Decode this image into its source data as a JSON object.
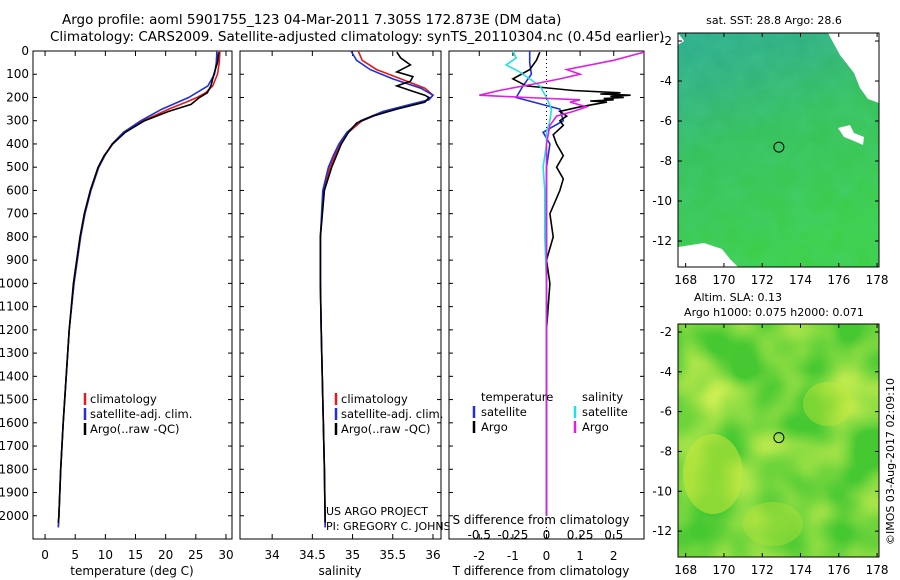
{
  "header": {
    "title_line1": "Argo profile: aoml 5901755_123 04-Mar-2011 7.305S 172.873E (DM data)",
    "title_line2": "Climatology: CARS2009. Satellite-adjusted climatology: synTS_20110304.nc (0.45d earlier)"
  },
  "colors": {
    "climatology": "#e41a1c",
    "satellite": "#1f30d6",
    "argo": "#000000",
    "sal_satellite": "#22e0e8",
    "sal_argo": "#e020e0",
    "sst_ocean": "#2db85a",
    "sla_ocean": "#4ccc2a",
    "land": "#ffffff"
  },
  "chart_data": [
    {
      "id": "temperature",
      "type": "line",
      "xlabel": "temperature (deg C)",
      "xlim": [
        -2,
        31
      ],
      "ylim": [
        2100,
        0
      ],
      "xticks": [
        0,
        5,
        10,
        15,
        20,
        25,
        30
      ],
      "yticks": [
        0,
        100,
        200,
        300,
        400,
        500,
        600,
        700,
        800,
        900,
        1000,
        1100,
        1200,
        1300,
        1400,
        1500,
        1600,
        1700,
        1800,
        1900,
        2000
      ],
      "legend": [
        "climatology",
        "satellite-adj. clim.",
        "Argo(..raw -QC)"
      ],
      "series": [
        {
          "name": "climatology",
          "color_key": "climatology",
          "depth": [
            0,
            50,
            100,
            150,
            180,
            200,
            220,
            250,
            300,
            350,
            400,
            450,
            500,
            600,
            700,
            800,
            1000,
            1200,
            1400,
            1600,
            1800,
            2000,
            2050
          ],
          "values": [
            29.0,
            28.9,
            28.6,
            27.8,
            26.6,
            25.2,
            23.4,
            20.5,
            16.3,
            13.2,
            11.2,
            9.9,
            8.9,
            7.6,
            6.6,
            5.9,
            4.8,
            4.0,
            3.5,
            3.0,
            2.6,
            2.3,
            2.2
          ]
        },
        {
          "name": "satellite-adj. clim.",
          "color_key": "satellite",
          "depth": [
            0,
            50,
            100,
            150,
            200,
            250,
            300,
            350,
            400,
            450,
            500,
            600,
            700,
            800,
            1000,
            1200,
            1400,
            1600,
            1800,
            2000,
            2050
          ],
          "values": [
            28.5,
            28.4,
            28.1,
            27.0,
            23.8,
            19.4,
            15.9,
            13.0,
            11.1,
            9.9,
            8.9,
            7.6,
            6.6,
            5.9,
            4.8,
            4.0,
            3.5,
            3.0,
            2.6,
            2.3,
            2.2
          ]
        },
        {
          "name": "Argo(..raw -QC)",
          "color_key": "argo",
          "depth": [
            5,
            50,
            100,
            150,
            180,
            200,
            230,
            260,
            300,
            350,
            400,
            450,
            500,
            600,
            700,
            800,
            1000,
            1200,
            1400,
            1600,
            1800,
            2000,
            2030
          ],
          "values": [
            28.8,
            28.6,
            28.0,
            27.5,
            26.9,
            25.6,
            24.2,
            20.5,
            16.5,
            13.3,
            11.2,
            9.8,
            8.8,
            7.5,
            6.5,
            5.8,
            4.7,
            4.0,
            3.5,
            3.0,
            2.6,
            2.3,
            2.2
          ]
        }
      ]
    },
    {
      "id": "salinity",
      "type": "line",
      "xlabel": "salinity",
      "xlim": [
        33.6,
        36.1
      ],
      "ylim": [
        2100,
        0
      ],
      "xticks": [
        34,
        34.5,
        35,
        35.5,
        36
      ],
      "xticklabels": [
        "34",
        "34.5",
        "35",
        "35.5",
        "36"
      ],
      "legend": [
        "climatology",
        "satellite-adj. clim.",
        "Argo(..raw -QC)"
      ],
      "series": [
        {
          "name": "climatology",
          "color_key": "climatology",
          "depth": [
            0,
            40,
            80,
            120,
            160,
            190,
            210,
            230,
            260,
            300,
            350,
            400,
            450,
            500,
            600,
            800,
            1000,
            1200,
            1500,
            1800,
            2050
          ],
          "values": [
            35.07,
            35.12,
            35.3,
            35.6,
            35.9,
            36.0,
            35.95,
            35.75,
            35.4,
            35.12,
            34.95,
            34.85,
            34.78,
            34.72,
            34.64,
            34.6,
            34.6,
            34.61,
            34.63,
            34.65,
            34.66
          ]
        },
        {
          "name": "satellite-adj. clim.",
          "color_key": "satellite",
          "depth": [
            0,
            40,
            80,
            120,
            160,
            190,
            210,
            230,
            260,
            300,
            350,
            400,
            450,
            500,
            600,
            800,
            1000,
            1200,
            1500,
            1800,
            2050
          ],
          "values": [
            34.98,
            35.05,
            35.22,
            35.5,
            35.85,
            36.0,
            35.95,
            35.72,
            35.38,
            35.1,
            34.93,
            34.83,
            34.76,
            34.7,
            34.63,
            34.6,
            34.6,
            34.61,
            34.63,
            34.65,
            34.66
          ]
        },
        {
          "name": "Argo(..raw -QC)",
          "color_key": "argo",
          "depth": [
            5,
            30,
            60,
            90,
            110,
            130,
            150,
            170,
            190,
            200,
            220,
            250,
            280,
            310,
            350,
            400,
            450,
            500,
            600,
            800,
            1000,
            1200,
            1500,
            1800,
            2030
          ],
          "values": [
            35.55,
            35.6,
            35.72,
            35.55,
            35.75,
            35.72,
            35.55,
            35.72,
            35.9,
            35.95,
            35.9,
            35.55,
            35.25,
            35.05,
            34.95,
            34.86,
            34.8,
            34.74,
            34.65,
            34.6,
            34.6,
            34.61,
            34.63,
            34.65,
            34.66
          ]
        }
      ]
    },
    {
      "id": "difference",
      "type": "line",
      "xlabel": "T difference from climatology",
      "xlabel_top": "S difference from climatology",
      "xlim": [
        -2.9,
        2.9
      ],
      "ylim": [
        2100,
        0
      ],
      "xticks": [
        -2,
        -1,
        0,
        1,
        2
      ],
      "s_ticklabels": [
        "-0.5",
        "-0.25",
        "0",
        "0.25",
        "0.5"
      ],
      "legend_left_title": "temperature",
      "legend_right_title": "salinity",
      "legend_labels": [
        "satellite",
        "Argo"
      ],
      "zero_line": true,
      "series": [
        {
          "name": "temperature satellite",
          "color_key": "satellite",
          "depth": [
            0,
            50,
            100,
            150,
            200,
            250,
            300,
            350,
            400,
            500,
            600,
            800,
            1000,
            1200,
            1500,
            1800,
            2000
          ],
          "values": [
            -0.5,
            -0.5,
            -0.45,
            -0.7,
            -0.9,
            0.4,
            0.5,
            -0.1,
            0.1,
            0.0,
            0.0,
            0.0,
            0.0,
            0.0,
            0.0,
            0.0,
            0.0
          ]
        },
        {
          "name": "temperature Argo",
          "color_key": "argo",
          "depth": [
            5,
            40,
            80,
            120,
            150,
            170,
            180,
            185,
            190,
            195,
            200,
            205,
            210,
            215,
            220,
            230,
            240,
            260,
            280,
            300,
            320,
            360,
            400,
            450,
            500,
            550,
            600,
            700,
            800,
            900,
            1000,
            1200,
            1500,
            1800,
            2000
          ],
          "values": [
            -0.2,
            -0.3,
            -0.5,
            -1.0,
            -0.6,
            0.8,
            2.2,
            1.6,
            2.5,
            1.9,
            2.3,
            1.7,
            2.0,
            1.3,
            1.8,
            1.4,
            1.0,
            0.4,
            0.6,
            0.4,
            0.5,
            0.2,
            0.3,
            0.5,
            0.3,
            0.5,
            0.4,
            0.1,
            0.2,
            0.0,
            0.1,
            0.0,
            0.0,
            0.0,
            0.0
          ]
        },
        {
          "name": "salinity satellite",
          "color_key": "sal_satellite",
          "depth": [
            0,
            30,
            60,
            90,
            120,
            150,
            200,
            250,
            300,
            350,
            400,
            500,
            600,
            800,
            1000,
            1200,
            1500,
            1800,
            2000
          ],
          "values": [
            -1.0,
            -0.9,
            -1.2,
            -0.8,
            -0.5,
            -0.2,
            0.0,
            0.15,
            0.1,
            0.0,
            0.0,
            -0.1,
            -0.05,
            -0.05,
            0.0,
            0.0,
            0.0,
            0.0,
            0.0
          ]
        },
        {
          "name": "salinity Argo",
          "color_key": "sal_argo",
          "depth": [
            5,
            40,
            80,
            100,
            120,
            140,
            170,
            190,
            200,
            210,
            220,
            240,
            260,
            280,
            320,
            400,
            500,
            600,
            800,
            1000,
            1500,
            2000
          ],
          "values": [
            2.9,
            2.0,
            0.6,
            1.0,
            0.4,
            -0.3,
            -1.4,
            -2.0,
            -0.6,
            1.0,
            0.7,
            1.2,
            0.8,
            0.3,
            0.1,
            0.0,
            0.0,
            0.0,
            0.0,
            0.0,
            0.0,
            0.0
          ]
        }
      ]
    },
    {
      "id": "sst_map",
      "type": "heatmap",
      "title": "sat. SST: 28.8  Argo: 28.6",
      "xlim": [
        167.6,
        178.1
      ],
      "ylim": [
        -13.3,
        -1.6
      ],
      "xticks": [
        168,
        170,
        172,
        174,
        176,
        178
      ],
      "yticks": [
        -2,
        -4,
        -6,
        -8,
        -10,
        -12
      ],
      "float_position": {
        "lon": 172.873,
        "lat": -7.305
      }
    },
    {
      "id": "sla_map",
      "type": "heatmap",
      "title_line1": "Altim. SLA: 0.13",
      "title_line2": "Argo h1000: 0.075 h2000: 0.071",
      "xlim": [
        167.6,
        178.1
      ],
      "ylim": [
        -13.3,
        -1.6
      ],
      "xticks": [
        168,
        170,
        172,
        174,
        176,
        178
      ],
      "yticks": [
        -2,
        -4,
        -6,
        -8,
        -10,
        -12
      ],
      "float_position": {
        "lon": 172.873,
        "lat": -7.305
      }
    }
  ],
  "annotations": {
    "project_line1": "US ARGO PROJECT",
    "project_line2": "PI: GREGORY C. JOHNSON",
    "credit": "©IMOS 03-Aug-2017 02:09:10"
  }
}
